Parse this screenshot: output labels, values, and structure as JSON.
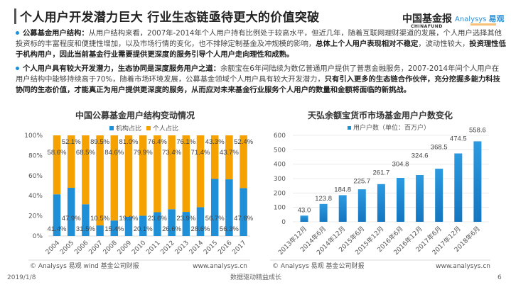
{
  "header": {
    "title": "个人用户开发潜力巨大 行业生态链亟待更大的价值突破",
    "logo_chinafund": "中国基金报",
    "logo_chinafund_sub": "CHINAFUND",
    "logo_analysys": "Analysys",
    "logo_analysys_cn": "易观"
  },
  "paragraphs": [
    {
      "lead": "公募基金用户结构：",
      "text1": "从用户结构来看，2007年-2014年个人用户持有比例处于较高水平，但近几年，随着互联网理财渠道的发展，个人用户选择其他投资标的丰富程度和便捷性增加，以及市场行情的变化，也不排除定制基金及冲规模的影响，",
      "bold1": "总体上个人用户表现相对不稳定",
      "text2": "，波动性较大，",
      "bold2": "投资理性低于机构用户，因此当前基金行业需要提供更深度的服务引导个人用户走向理性和成熟。"
    },
    {
      "lead": "个人用户具有较大开发潜力，生态协同是深度服务用户之道：",
      "text1": "余额宝在6年间陆续为数亿普通用户提供了普惠金融服务，2007-2014年间个人用户在用户结构中能够持续高于70%，随着市场环境发展，公募基金领域个人用户具有较大开发潜力，",
      "bold1": "只有引入更多的生态链合作伙伴，充分挖掘多能力科技协同的生态价值，才能真正为用户提供更深度的服务，从而应对未来基金行业服务个人用户的数量和金额将面临的新挑战。",
      "text2": "",
      "bold2": ""
    }
  ],
  "chart_data": [
    {
      "type": "bar",
      "stacked": true,
      "title": "中国公募基金用户结构变动情况",
      "categories": [
        "2004",
        "2005",
        "2006",
        "2007",
        "2008",
        "2009",
        "2010",
        "2011",
        "2012",
        "2013",
        "2014",
        "2015",
        "2016",
        "2017"
      ],
      "series": [
        {
          "name": "机构占比",
          "color": "#1f8fd8",
          "values": [
            41.4,
            47.9,
            31.5,
            10.5,
            15.4,
            19.0,
            20.1,
            23.6,
            26.6,
            23.9,
            28.6,
            56.7,
            56.3,
            47.6
          ],
          "labels": [
            "41.4%",
            "47.9%",
            "31.5%",
            "10.5%",
            "15.4%",
            "19.0%",
            "20.1%",
            "23.6%",
            "26.6%",
            "23.9%",
            "28.6%",
            "56.7%",
            "56.3%",
            "47.6%"
          ]
        },
        {
          "name": "个人占比",
          "color": "#f5a100",
          "values": [
            58.6,
            52.1,
            68.5,
            89.5,
            84.6,
            81.0,
            79.9,
            76.4,
            73.4,
            76.1,
            71.4,
            43.3,
            43.7,
            52.4
          ],
          "labels": [
            "58.6%",
            "52.1%",
            "68.5%",
            "89.5%",
            "84.6%",
            "81.0%",
            "79.9%",
            "76.4%",
            "73.4%",
            "76.1%",
            "71.4%",
            "43.3%",
            "43.7%",
            "52.4%"
          ]
        }
      ],
      "ylim": [
        0,
        100
      ],
      "yticks": [
        "0%",
        "20%",
        "40%",
        "60%",
        "80%",
        "100%"
      ],
      "legend": "top",
      "grid": false,
      "source": "© Analysys 易观 wind 基金公司财报",
      "site": "www.analysys.cn"
    },
    {
      "type": "bar",
      "title": "天弘余额宝货币市场基金用户户数变化",
      "categories": [
        "2013年12月",
        "2014年6月",
        "2014年12月",
        "2015年6月",
        "2015年12月",
        "2016年6月",
        "2016年12月",
        "2017年6月",
        "2017年12月",
        "2018年6月"
      ],
      "series": [
        {
          "name": "用户户数（单位：百万户）",
          "color": "#1f8fd8",
          "values": [
            43.0,
            123.8,
            184.8,
            225.7,
            261.7,
            304.8,
            324.6,
            368.5,
            474.5,
            558.6
          ],
          "labels": [
            "43.0",
            "123.8",
            "184.8",
            "225.7",
            "261.7",
            "304.8",
            "324.6",
            "368.5",
            "474.5",
            "558.6"
          ]
        }
      ],
      "ylim": [
        0,
        600
      ],
      "yticks": [
        "0",
        "100",
        "200",
        "300",
        "400",
        "500",
        "600"
      ],
      "legend": "top",
      "grid": true,
      "source": "© Analysys 易观 基金公司财报",
      "site": "www.analysys.cn"
    }
  ],
  "footer": {
    "date": "2019/1/8",
    "slogan": "数据驱动精益成长",
    "page": "6"
  }
}
